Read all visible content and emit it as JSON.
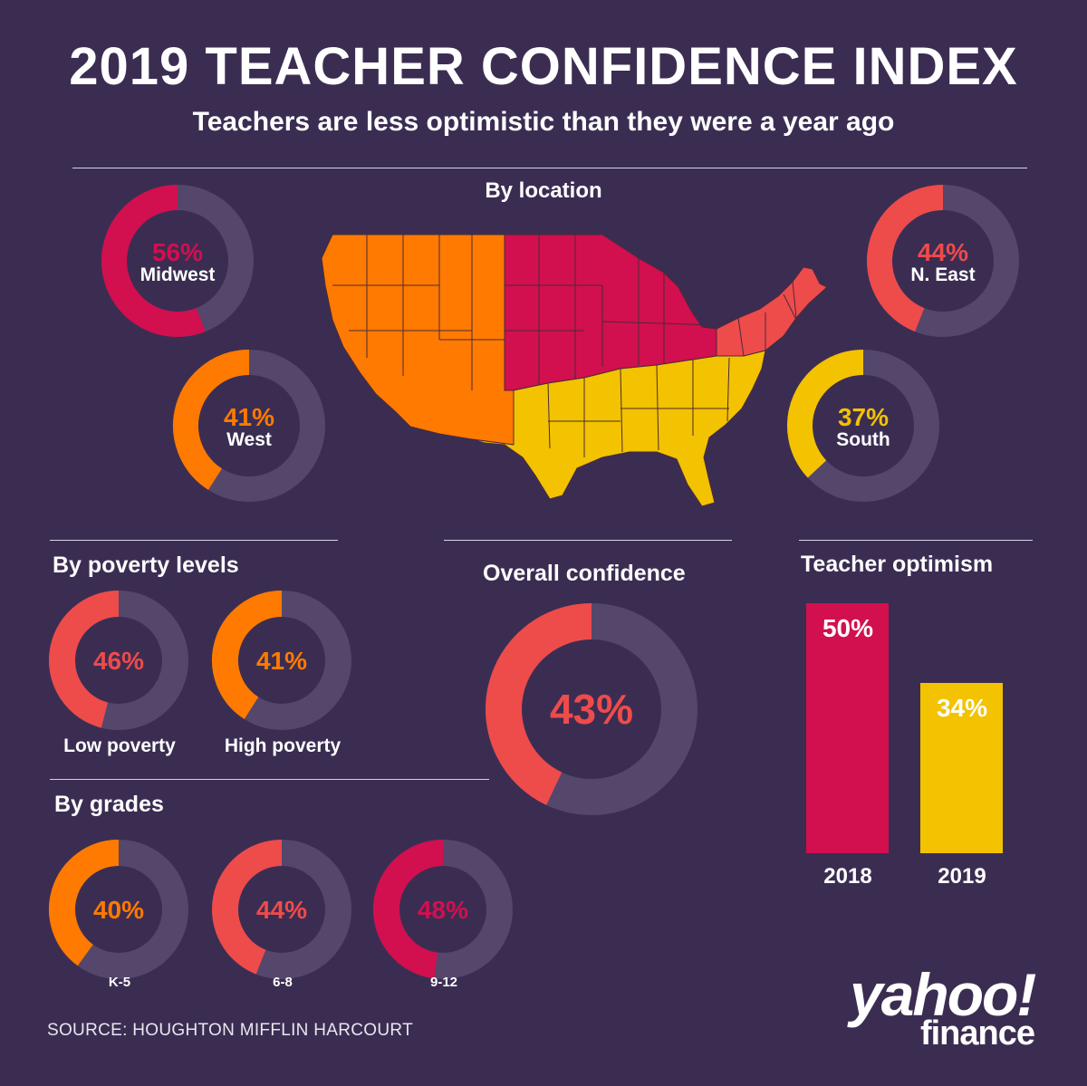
{
  "title": "2019 TEACHER CONFIDENCE INDEX",
  "subtitle": "Teachers are less optimistic than they were a year ago",
  "sections": {
    "location": "By location",
    "poverty": "By poverty levels",
    "overall": "Overall confidence",
    "optimism": "Teacher optimism",
    "grades": "By grades"
  },
  "colors": {
    "background": "#3b2d52",
    "track": "#54476b",
    "midwest": "#d20f4f",
    "northeast": "#ee4b4b",
    "west": "#ff7a00",
    "south": "#f3c200"
  },
  "source": "SOURCE:  HOUGHTON MIFFLIN HARCOURT",
  "logo": {
    "main": "yahoo!",
    "sub": "finance"
  },
  "chart_data": [
    {
      "type": "pie",
      "title": "By location",
      "categories": [
        "Midwest",
        "N. East",
        "West",
        "South"
      ],
      "values": [
        56,
        44,
        41,
        37
      ],
      "labels": [
        "56%",
        "44%",
        "41%",
        "37%"
      ],
      "colors": [
        "#d20f4f",
        "#ee4b4b",
        "#ff7a00",
        "#f3c200"
      ]
    },
    {
      "type": "pie",
      "title": "By poverty levels",
      "categories": [
        "Low poverty",
        "High poverty"
      ],
      "values": [
        46,
        41
      ],
      "labels": [
        "46%",
        "41%"
      ],
      "colors": [
        "#ee4b4b",
        "#ff7a00"
      ]
    },
    {
      "type": "pie",
      "title": "By grades",
      "categories": [
        "K-5",
        "6-8",
        "9-12"
      ],
      "values": [
        40,
        44,
        48
      ],
      "labels": [
        "40%",
        "44%",
        "48%"
      ],
      "colors": [
        "#ff7a00",
        "#ee4b4b",
        "#d20f4f"
      ]
    },
    {
      "type": "pie",
      "title": "Overall confidence",
      "categories": [
        ""
      ],
      "values": [
        43
      ],
      "labels": [
        "43%"
      ],
      "colors": [
        "#ee4b4b"
      ]
    },
    {
      "type": "bar",
      "title": "Teacher optimism",
      "categories": [
        "2018",
        "2019"
      ],
      "values": [
        50,
        34
      ],
      "labels": [
        "50%",
        "34%"
      ],
      "colors": [
        "#d20f4f",
        "#f3c200"
      ],
      "ylim": [
        0,
        50
      ]
    }
  ]
}
